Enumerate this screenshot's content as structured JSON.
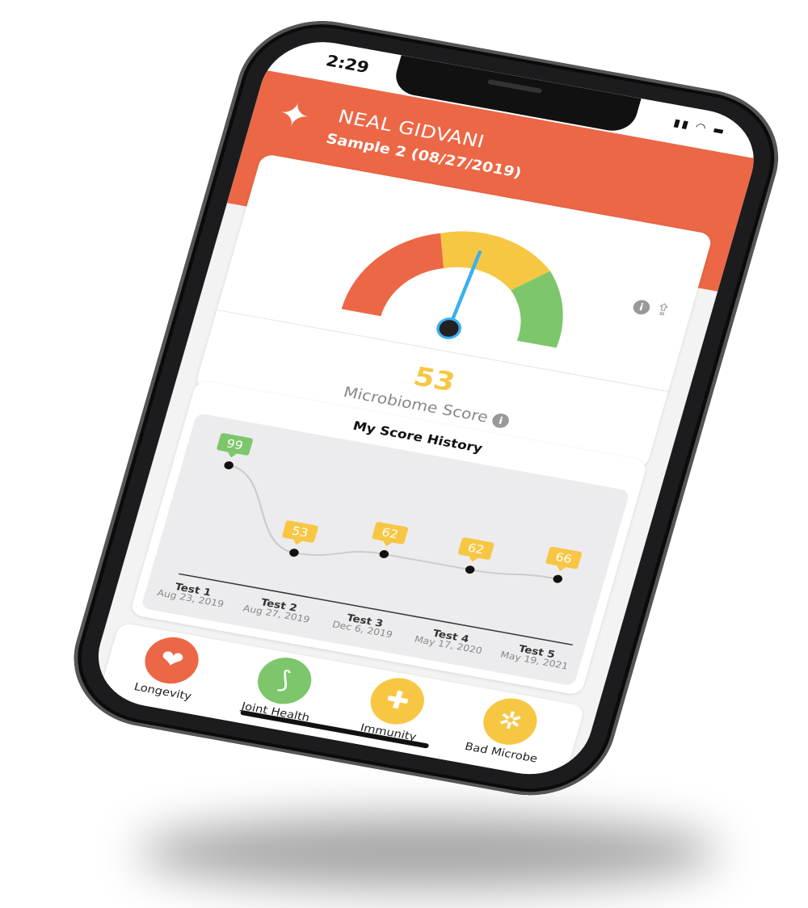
{
  "status_bar": {
    "time": "2:29"
  },
  "header": {
    "name": "NEAL GIDVANI",
    "sample": "Sample 2 (08/27/2019)",
    "color": "#ec6746"
  },
  "gauge": {
    "value": 53,
    "segments": [
      "#ec6746",
      "#f7c744",
      "#7dc66b"
    ]
  },
  "score": {
    "value": "53",
    "label": "Microbiome Score"
  },
  "history": {
    "title": "My Score History"
  },
  "chart_data": {
    "type": "line",
    "title": "My Score History",
    "categories": [
      "Test 1",
      "Test 2",
      "Test 3",
      "Test 4",
      "Test 5"
    ],
    "dates": [
      "Aug 23, 2019",
      "Aug 27, 2019",
      "Dec 6, 2019",
      "May 17, 2020",
      "May 19, 2021"
    ],
    "values": [
      99,
      53,
      62,
      62,
      66
    ],
    "label_colors": [
      "#7dc66b",
      "#f7c744",
      "#f7c744",
      "#f7c744",
      "#f7c744"
    ],
    "xlabel": "",
    "ylabel": ""
  },
  "categories": [
    {
      "label": "Longevity",
      "icon": "heart-icon",
      "color": "#ec6746",
      "glyph": "❤"
    },
    {
      "label": "Joint Health",
      "icon": "joint-icon",
      "color": "#7dc66b",
      "glyph": "⟆"
    },
    {
      "label": "Immunity",
      "icon": "shield-plus-icon",
      "color": "#f7c744",
      "glyph": "✚"
    },
    {
      "label": "Bad Microbe",
      "icon": "microbe-icon",
      "color": "#f7c744",
      "glyph": "✲"
    }
  ]
}
